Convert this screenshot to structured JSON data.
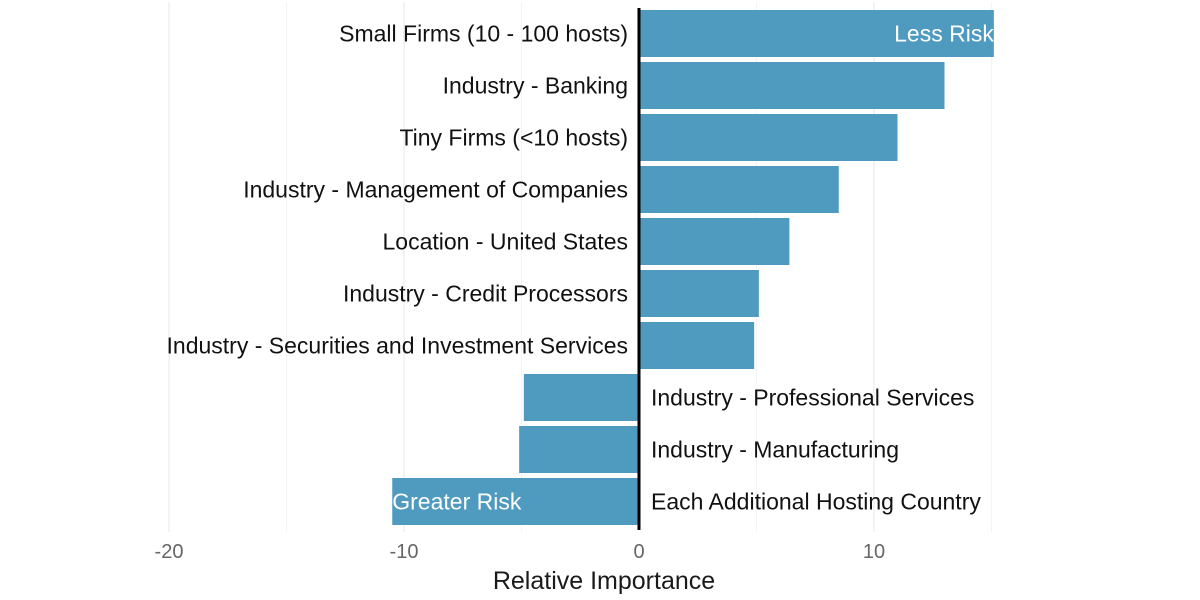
{
  "chart_data": {
    "type": "bar",
    "orientation": "horizontal",
    "title": "",
    "xlabel": "Relative Importance",
    "ylabel": "",
    "xlim": [
      -20,
      16
    ],
    "xticks": [
      -20,
      -10,
      0,
      10
    ],
    "xtick_labels": [
      "-20",
      "-10",
      "0",
      "10"
    ],
    "grid": true,
    "bar_color": "#4F9ABF",
    "categories": [
      "Small Firms (10 - 100 hosts)",
      "Industry - Banking",
      "Tiny Firms (<10 hosts)",
      "Industry - Management of Companies",
      "Location - United States",
      "Industry - Credit Processors",
      "Industry - Securities and Investment Services",
      "Industry - Professional Services",
      "Industry - Manufacturing",
      "Each Additional Hosting Country"
    ],
    "values": [
      15.1,
      13.0,
      11.0,
      8.5,
      6.4,
      5.1,
      4.9,
      -4.9,
      -5.1,
      -10.5
    ],
    "annotations": [
      {
        "text": "Less Risk",
        "category_index": 0,
        "anchor": "end"
      },
      {
        "text": "Greater Risk",
        "category_index": 9,
        "anchor": "start"
      }
    ]
  }
}
